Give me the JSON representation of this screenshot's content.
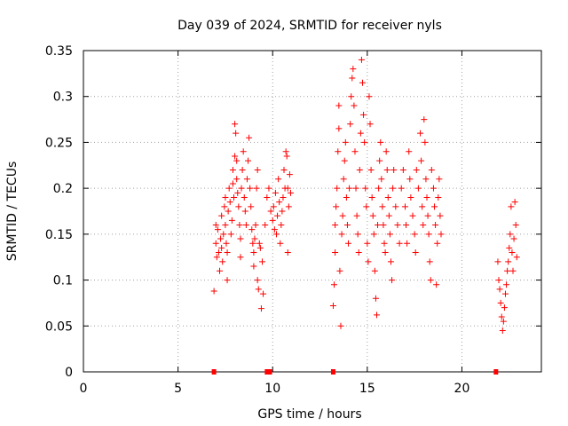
{
  "chart_data": {
    "type": "scatter",
    "title": "Day 039 of 2024, SRMTID for receiver nyls",
    "xlabel": "GPS time / hours",
    "ylabel": "SRMTID / TECUs",
    "xlim": [
      0,
      24.2
    ],
    "ylim": [
      0,
      0.35
    ],
    "grid": true,
    "x_ticks": [
      0,
      5,
      10,
      15,
      20
    ],
    "x_tick_labels": [
      "0",
      "5",
      "10",
      "15",
      "20"
    ],
    "y_ticks": [
      0,
      0.05,
      0.1,
      0.15,
      0.2,
      0.25,
      0.3,
      0.35
    ],
    "y_tick_labels": [
      "0",
      "0.05",
      "0.1",
      "0.15",
      "0.2",
      "0.25",
      "0.3",
      "0.35"
    ],
    "marker": "+",
    "color": "#ff0000",
    "series": [
      {
        "values": [
          [
            6.9,
            0.088
          ],
          [
            7.0,
            0.14
          ],
          [
            7.0,
            0.16
          ],
          [
            7.05,
            0.125
          ],
          [
            7.1,
            0.155
          ],
          [
            7.15,
            0.13
          ],
          [
            7.2,
            0.11
          ],
          [
            7.25,
            0.145
          ],
          [
            7.3,
            0.17
          ],
          [
            7.3,
            0.135
          ],
          [
            7.35,
            0.12
          ],
          [
            7.4,
            0.15
          ],
          [
            7.45,
            0.18
          ],
          [
            7.5,
            0.19
          ],
          [
            7.5,
            0.16
          ],
          [
            7.55,
            0.14
          ],
          [
            7.6,
            0.1
          ],
          [
            7.6,
            0.13
          ],
          [
            7.65,
            0.175
          ],
          [
            7.7,
            0.2
          ],
          [
            7.75,
            0.185
          ],
          [
            7.8,
            0.15
          ],
          [
            7.85,
            0.165
          ],
          [
            7.9,
            0.22
          ],
          [
            7.9,
            0.205
          ],
          [
            7.95,
            0.19
          ],
          [
            8.0,
            0.235
          ],
          [
            8.0,
            0.27
          ],
          [
            8.05,
            0.26
          ],
          [
            8.1,
            0.23
          ],
          [
            8.1,
            0.21
          ],
          [
            8.15,
            0.195
          ],
          [
            8.2,
            0.18
          ],
          [
            8.25,
            0.16
          ],
          [
            8.3,
            0.145
          ],
          [
            8.3,
            0.125
          ],
          [
            8.35,
            0.2
          ],
          [
            8.4,
            0.22
          ],
          [
            8.45,
            0.24
          ],
          [
            8.5,
            0.19
          ],
          [
            8.55,
            0.175
          ],
          [
            8.6,
            0.16
          ],
          [
            8.65,
            0.21
          ],
          [
            8.7,
            0.23
          ],
          [
            8.75,
            0.255
          ],
          [
            8.8,
            0.2
          ],
          [
            8.85,
            0.18
          ],
          [
            8.9,
            0.155
          ],
          [
            8.95,
            0.14
          ],
          [
            9.0,
            0.13
          ],
          [
            9.0,
            0.115
          ],
          [
            9.05,
            0.145
          ],
          [
            9.1,
            0.16
          ],
          [
            9.15,
            0.2
          ],
          [
            9.2,
            0.22
          ],
          [
            9.2,
            0.1
          ],
          [
            9.25,
            0.09
          ],
          [
            9.3,
            0.14
          ],
          [
            9.35,
            0.135
          ],
          [
            9.4,
            0.069
          ],
          [
            9.45,
            0.12
          ],
          [
            9.5,
            0.085
          ],
          [
            9.6,
            0.16
          ],
          [
            9.7,
            0.19
          ],
          [
            9.8,
            0.2
          ],
          [
            9.9,
            0.175
          ],
          [
            10.0,
            0.165
          ],
          [
            10.05,
            0.18
          ],
          [
            10.1,
            0.155
          ],
          [
            10.15,
            0.195
          ],
          [
            10.2,
            0.15
          ],
          [
            10.25,
            0.17
          ],
          [
            10.3,
            0.21
          ],
          [
            10.35,
            0.185
          ],
          [
            10.4,
            0.14
          ],
          [
            10.45,
            0.16
          ],
          [
            10.5,
            0.175
          ],
          [
            10.55,
            0.19
          ],
          [
            10.6,
            0.22
          ],
          [
            10.65,
            0.2
          ],
          [
            10.7,
            0.24
          ],
          [
            10.75,
            0.235
          ],
          [
            10.8,
            0.2
          ],
          [
            10.8,
            0.13
          ],
          [
            10.85,
            0.18
          ],
          [
            10.9,
            0.215
          ],
          [
            10.95,
            0.195
          ],
          [
            13.2,
            0.072
          ],
          [
            13.25,
            0.095
          ],
          [
            13.3,
            0.13
          ],
          [
            13.3,
            0.16
          ],
          [
            13.35,
            0.18
          ],
          [
            13.4,
            0.2
          ],
          [
            13.45,
            0.24
          ],
          [
            13.5,
            0.265
          ],
          [
            13.5,
            0.29
          ],
          [
            13.55,
            0.11
          ],
          [
            13.6,
            0.05
          ],
          [
            13.65,
            0.15
          ],
          [
            13.7,
            0.17
          ],
          [
            13.75,
            0.21
          ],
          [
            13.8,
            0.23
          ],
          [
            13.85,
            0.25
          ],
          [
            13.9,
            0.19
          ],
          [
            13.95,
            0.16
          ],
          [
            14.0,
            0.14
          ],
          [
            14.05,
            0.2
          ],
          [
            14.1,
            0.27
          ],
          [
            14.15,
            0.3
          ],
          [
            14.2,
            0.32
          ],
          [
            14.25,
            0.33
          ],
          [
            14.3,
            0.29
          ],
          [
            14.35,
            0.24
          ],
          [
            14.4,
            0.2
          ],
          [
            14.45,
            0.17
          ],
          [
            14.5,
            0.15
          ],
          [
            14.55,
            0.13
          ],
          [
            14.6,
            0.22
          ],
          [
            14.65,
            0.26
          ],
          [
            14.7,
            0.34
          ],
          [
            14.75,
            0.315
          ],
          [
            14.8,
            0.28
          ],
          [
            14.85,
            0.25
          ],
          [
            14.9,
            0.2
          ],
          [
            14.95,
            0.18
          ],
          [
            15.0,
            0.14
          ],
          [
            15.05,
            0.12
          ],
          [
            15.1,
            0.3
          ],
          [
            15.15,
            0.27
          ],
          [
            15.2,
            0.22
          ],
          [
            15.25,
            0.19
          ],
          [
            15.3,
            0.17
          ],
          [
            15.35,
            0.15
          ],
          [
            15.4,
            0.11
          ],
          [
            15.45,
            0.08
          ],
          [
            15.5,
            0.062
          ],
          [
            15.55,
            0.16
          ],
          [
            15.6,
            0.2
          ],
          [
            15.65,
            0.23
          ],
          [
            15.7,
            0.25
          ],
          [
            15.75,
            0.21
          ],
          [
            15.8,
            0.18
          ],
          [
            15.85,
            0.16
          ],
          [
            15.9,
            0.14
          ],
          [
            15.95,
            0.13
          ],
          [
            16.0,
            0.24
          ],
          [
            16.05,
            0.22
          ],
          [
            16.1,
            0.19
          ],
          [
            16.15,
            0.17
          ],
          [
            16.2,
            0.15
          ],
          [
            16.25,
            0.12
          ],
          [
            16.3,
            0.1
          ],
          [
            16.35,
            0.2
          ],
          [
            16.4,
            0.22
          ],
          [
            16.5,
            0.18
          ],
          [
            16.6,
            0.16
          ],
          [
            16.7,
            0.14
          ],
          [
            16.8,
            0.2
          ],
          [
            16.9,
            0.22
          ],
          [
            17.0,
            0.18
          ],
          [
            17.05,
            0.16
          ],
          [
            17.1,
            0.14
          ],
          [
            17.2,
            0.24
          ],
          [
            17.25,
            0.21
          ],
          [
            17.3,
            0.19
          ],
          [
            17.4,
            0.17
          ],
          [
            17.5,
            0.15
          ],
          [
            17.55,
            0.13
          ],
          [
            17.6,
            0.22
          ],
          [
            17.7,
            0.2
          ],
          [
            17.8,
            0.26
          ],
          [
            17.85,
            0.23
          ],
          [
            17.9,
            0.18
          ],
          [
            17.95,
            0.16
          ],
          [
            18.0,
            0.275
          ],
          [
            18.05,
            0.25
          ],
          [
            18.1,
            0.21
          ],
          [
            18.15,
            0.19
          ],
          [
            18.2,
            0.17
          ],
          [
            18.25,
            0.15
          ],
          [
            18.3,
            0.12
          ],
          [
            18.35,
            0.1
          ],
          [
            18.4,
            0.22
          ],
          [
            18.5,
            0.2
          ],
          [
            18.55,
            0.18
          ],
          [
            18.6,
            0.16
          ],
          [
            18.65,
            0.095
          ],
          [
            18.7,
            0.14
          ],
          [
            18.75,
            0.19
          ],
          [
            18.8,
            0.21
          ],
          [
            18.85,
            0.17
          ],
          [
            18.9,
            0.15
          ],
          [
            21.9,
            0.12
          ],
          [
            21.95,
            0.1
          ],
          [
            22.0,
            0.09
          ],
          [
            22.05,
            0.075
          ],
          [
            22.1,
            0.06
          ],
          [
            22.15,
            0.045
          ],
          [
            22.2,
            0.055
          ],
          [
            22.25,
            0.07
          ],
          [
            22.3,
            0.085
          ],
          [
            22.35,
            0.095
          ],
          [
            22.4,
            0.11
          ],
          [
            22.45,
            0.12
          ],
          [
            22.5,
            0.135
          ],
          [
            22.55,
            0.15
          ],
          [
            22.6,
            0.18
          ],
          [
            22.65,
            0.13
          ],
          [
            22.7,
            0.11
          ],
          [
            22.75,
            0.145
          ],
          [
            22.8,
            0.185
          ],
          [
            22.85,
            0.16
          ],
          [
            22.9,
            0.125
          ]
        ]
      }
    ],
    "baseline_markers_x": [
      6.9,
      9.7,
      9.85,
      13.2,
      21.8
    ]
  }
}
